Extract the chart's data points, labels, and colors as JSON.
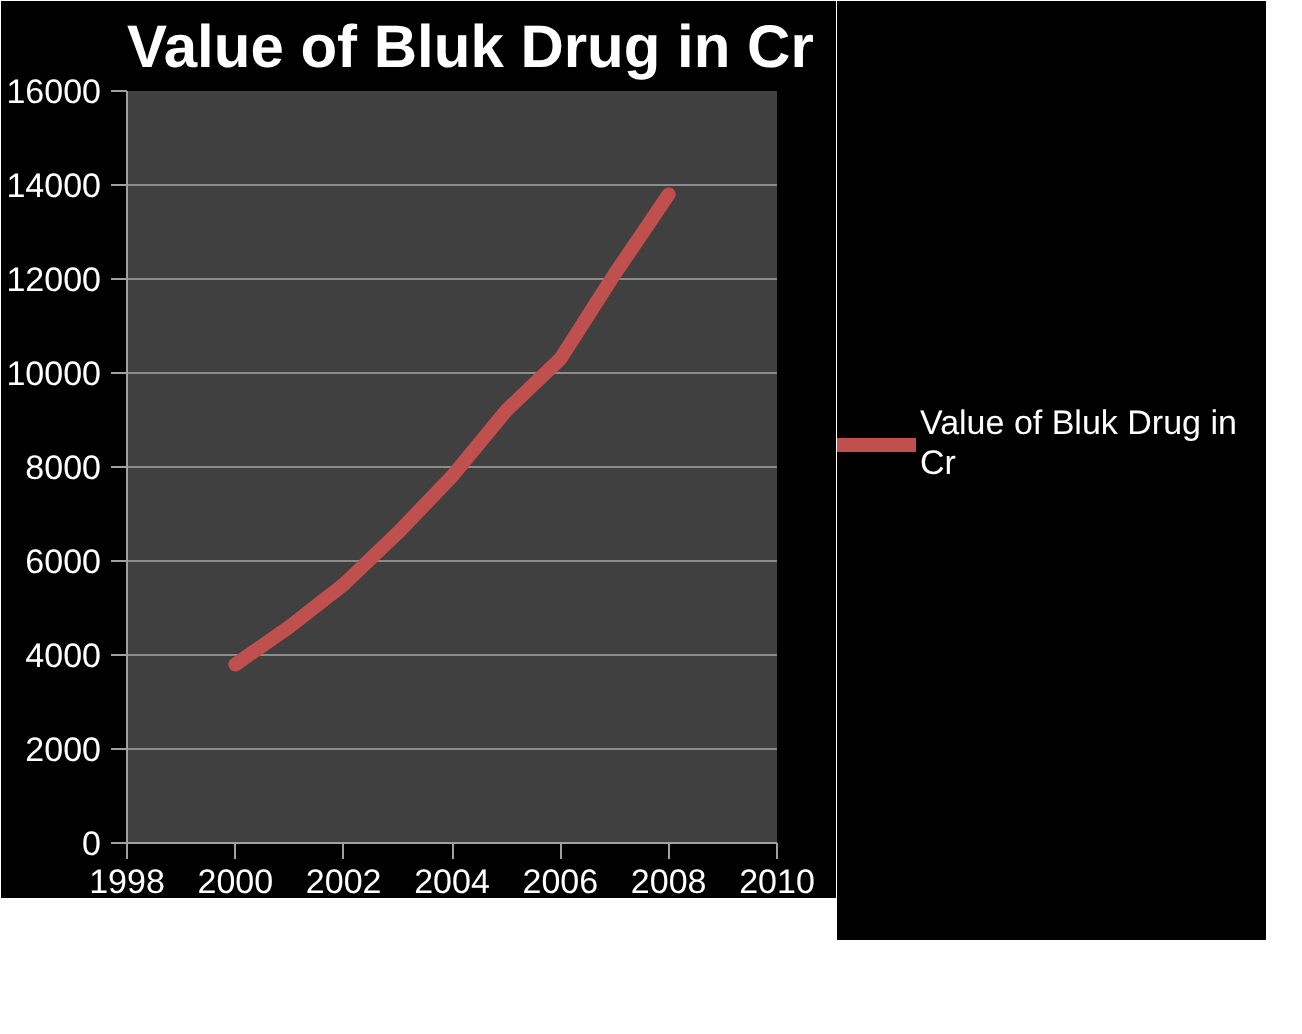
{
  "chart_data": {
    "type": "line",
    "title": "Value of Bluk Drug in Cr",
    "x": [
      2000,
      2001,
      2002,
      2003,
      2004,
      2005,
      2006,
      2007,
      2008
    ],
    "series": [
      {
        "name": "Value of Bluk Drug in Cr",
        "color": "#c0504d",
        "values": [
          3800,
          4600,
          5500,
          6600,
          7800,
          9200,
          10300,
          12100,
          13800
        ]
      }
    ],
    "xlim": [
      1998,
      2010
    ],
    "xticks": [
      1998,
      2000,
      2002,
      2004,
      2006,
      2008,
      2010
    ],
    "ylim": [
      0,
      16000
    ],
    "yticks": [
      0,
      2000,
      4000,
      6000,
      8000,
      10000,
      12000,
      14000,
      16000
    ],
    "grid": "y",
    "legend": "right",
    "marker": "none",
    "line_style": "solid"
  }
}
